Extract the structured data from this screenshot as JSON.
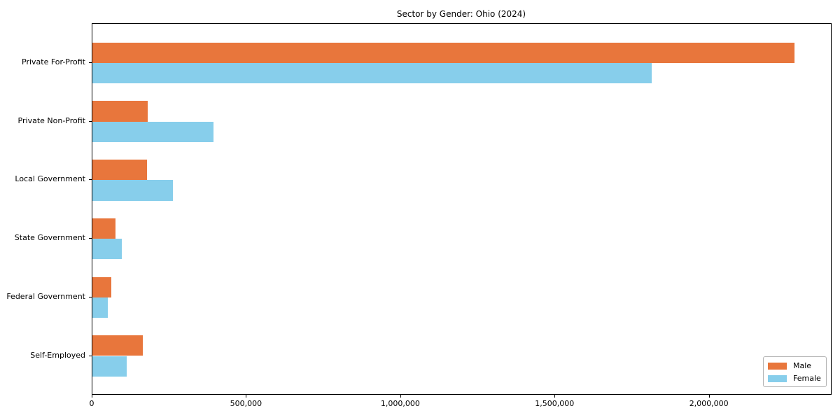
{
  "title": "Sector by Gender: Ohio (2024)",
  "chart_data": {
    "type": "bar",
    "orientation": "horizontal",
    "title": "Sector by Gender: Ohio (2024)",
    "categories": [
      "Private For-Profit",
      "Private Non-Profit",
      "Local Government",
      "State Government",
      "Federal Government",
      "Self-Employed"
    ],
    "series": [
      {
        "name": "Male",
        "color": "#e8763c",
        "values": [
          2275000,
          180000,
          177000,
          75000,
          62000,
          164000
        ]
      },
      {
        "name": "Female",
        "color": "#87ceeb",
        "values": [
          1812000,
          392000,
          261000,
          95000,
          49000,
          110000
        ]
      }
    ],
    "xlabel": "",
    "ylabel": "",
    "xlim": [
      0,
      2393000
    ],
    "x_ticks": [
      {
        "value": 0,
        "label": "0"
      },
      {
        "value": 500000,
        "label": "500,000"
      },
      {
        "value": 1000000,
        "label": "1,000,000"
      },
      {
        "value": 1500000,
        "label": "1,500,000"
      },
      {
        "value": 2000000,
        "label": "2,000,000"
      }
    ],
    "grid": false,
    "legend_position": "lower right",
    "bar_height_fraction": 0.35
  },
  "legend": {
    "items": [
      {
        "label": "Male",
        "color": "#e8763c"
      },
      {
        "label": "Female",
        "color": "#87ceeb"
      }
    ]
  }
}
